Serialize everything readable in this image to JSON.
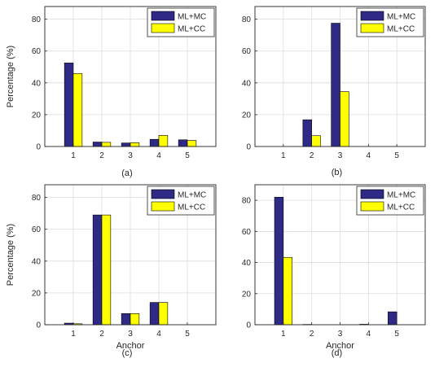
{
  "colors": {
    "series_1": "#2e2a86",
    "series_2": "#ffff00",
    "axis": "#262626",
    "grid": "#dcdcdc"
  },
  "legend_placement": "top-right",
  "grid": true,
  "chart_data": [
    {
      "type": "bar",
      "panel_label": "(a)",
      "categories": [
        "1",
        "2",
        "3",
        "4",
        "5"
      ],
      "series": [
        {
          "name": "ML+MC",
          "values": [
            52.5,
            2.8,
            2.2,
            4.5,
            4.2
          ]
        },
        {
          "name": "ML+CC",
          "values": [
            45.8,
            2.6,
            2.4,
            7.0,
            3.8
          ]
        }
      ],
      "ylabel": "Percentage (%)",
      "xlabel": "",
      "ylim": [
        0,
        88
      ],
      "yticks": [
        0,
        20,
        40,
        60,
        80
      ]
    },
    {
      "type": "bar",
      "panel_label": "(b)",
      "categories": [
        "1",
        "2",
        "3",
        "4",
        "5"
      ],
      "series": [
        {
          "name": "ML+MC",
          "values": [
            0,
            16.8,
            77.5,
            0,
            0
          ]
        },
        {
          "name": "ML+CC",
          "values": [
            0,
            6.8,
            34.5,
            0,
            0
          ]
        }
      ],
      "ylabel": "",
      "xlabel": "",
      "ylim": [
        0,
        88
      ],
      "yticks": [
        0,
        20,
        40,
        60,
        80
      ]
    },
    {
      "type": "bar",
      "panel_label": "(c)",
      "categories": [
        "1",
        "2",
        "3",
        "4",
        "5"
      ],
      "series": [
        {
          "name": "ML+MC",
          "values": [
            1.0,
            69.0,
            7.0,
            14.0,
            0
          ]
        },
        {
          "name": "ML+CC",
          "values": [
            0.6,
            69.0,
            7.0,
            14.0,
            0
          ]
        }
      ],
      "ylabel": "Percentage (%)",
      "xlabel": "Anchor",
      "ylim": [
        0,
        88
      ],
      "yticks": [
        0,
        20,
        40,
        60,
        80
      ]
    },
    {
      "type": "bar",
      "panel_label": "(d)",
      "categories": [
        "1",
        "2",
        "3",
        "4",
        "5"
      ],
      "series": [
        {
          "name": "ML+MC",
          "values": [
            82.0,
            0.2,
            0,
            0.3,
            8.3
          ]
        },
        {
          "name": "ML+CC",
          "values": [
            43.3,
            0,
            0,
            0,
            0
          ]
        }
      ],
      "ylabel": "",
      "xlabel": "Anchor",
      "ylim": [
        0,
        90
      ],
      "yticks": [
        0,
        20,
        40,
        60,
        80
      ]
    }
  ]
}
